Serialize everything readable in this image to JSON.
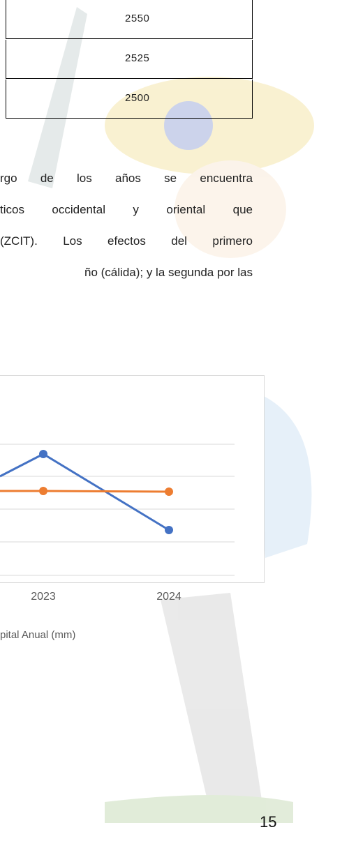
{
  "table": {
    "rows": [
      [
        "2550"
      ],
      [
        "2525"
      ],
      [
        "2500"
      ]
    ]
  },
  "paragraph": {
    "lines": [
      "rgo de los años se encuentra",
      "ticos occidental y oriental que",
      "(ZCIT). Los efectos del primero",
      "ño (cálida); y la segunda por las"
    ]
  },
  "chart": {
    "x_labels": [
      "2023",
      "2024"
    ],
    "legend": "pital Anual (mm)"
  },
  "page_number": "15"
}
